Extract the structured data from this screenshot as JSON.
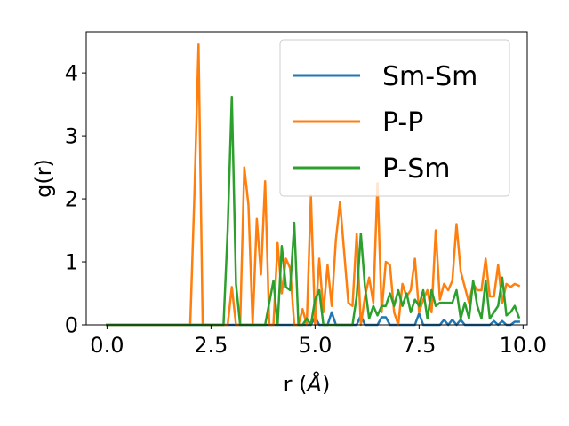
{
  "chart_data": {
    "type": "line",
    "xlabel": "r (",
    "xlabel_unit": "Å",
    "xlabel_close": ")",
    "ylabel": "g(r)",
    "xlim": [
      -0.5,
      10.1
    ],
    "ylim": [
      0,
      4.65
    ],
    "xticks": [
      0.0,
      2.5,
      5.0,
      7.5,
      10.0
    ],
    "xtick_labels": [
      "0.0",
      "2.5",
      "5.0",
      "7.5",
      "10.0"
    ],
    "yticks": [
      0,
      1,
      2,
      3,
      4
    ],
    "ytick_labels": [
      "0",
      "1",
      "2",
      "3",
      "4"
    ],
    "grid": false,
    "legend_position": "top-right",
    "series": [
      {
        "name": "Sm-Sm",
        "color": "#1f77b4",
        "x": [
          0.0,
          4.9,
          5.0,
          5.1,
          5.3,
          5.4,
          5.5,
          6.0,
          6.1,
          6.2,
          6.3,
          6.5,
          6.6,
          6.7,
          6.8,
          7.4,
          7.5,
          7.6,
          8.0,
          8.1,
          8.2,
          8.3,
          8.4,
          8.5,
          8.6,
          9.2,
          9.3,
          9.4,
          9.5,
          9.6,
          9.7,
          9.8,
          9.9
        ],
        "values": [
          0,
          0,
          0.12,
          0,
          0,
          0.2,
          0,
          0,
          0.15,
          0,
          0,
          0,
          0.12,
          0.12,
          0,
          0,
          0.18,
          0,
          0,
          0.08,
          0,
          0.08,
          0,
          0.08,
          0,
          0,
          0.06,
          0,
          0.06,
          0,
          0,
          0.05,
          0.05
        ]
      },
      {
        "name": "P-P",
        "color": "#ff7f0e",
        "x": [
          0.0,
          2.0,
          2.1,
          2.2,
          2.3,
          2.9,
          3.0,
          3.1,
          3.2,
          3.3,
          3.4,
          3.5,
          3.6,
          3.7,
          3.8,
          3.9,
          4.0,
          4.1,
          4.2,
          4.3,
          4.4,
          4.5,
          4.6,
          4.7,
          4.8,
          4.9,
          5.0,
          5.1,
          5.2,
          5.3,
          5.4,
          5.5,
          5.6,
          5.7,
          5.8,
          5.9,
          6.0,
          6.1,
          6.2,
          6.3,
          6.4,
          6.5,
          6.6,
          6.7,
          6.8,
          6.9,
          7.0,
          7.1,
          7.2,
          7.3,
          7.4,
          7.5,
          7.6,
          7.7,
          7.8,
          7.9,
          8.0,
          8.1,
          8.2,
          8.3,
          8.4,
          8.5,
          8.6,
          8.7,
          8.8,
          8.9,
          9.0,
          9.1,
          9.2,
          9.3,
          9.4,
          9.5,
          9.6,
          9.7,
          9.8,
          9.9
        ],
        "values": [
          0,
          0,
          2.05,
          4.45,
          0,
          0,
          0.6,
          0,
          0,
          2.5,
          1.9,
          0,
          1.68,
          0.8,
          2.28,
          0,
          0,
          1.3,
          0.5,
          1.05,
          0.9,
          0,
          0,
          0.25,
          0,
          2.05,
          0,
          1.05,
          0.2,
          0.95,
          0.3,
          1.35,
          1.95,
          1.15,
          0.35,
          0.3,
          1.45,
          0,
          0.45,
          0.75,
          0.35,
          2.25,
          0.2,
          1.0,
          0.95,
          0.2,
          0,
          0.65,
          0.45,
          0.55,
          1.05,
          0.2,
          0.4,
          0.55,
          0.2,
          1.5,
          0.4,
          0.65,
          0.55,
          0.7,
          1.6,
          0.85,
          0.6,
          0.35,
          0.65,
          0.55,
          0.55,
          1.05,
          0.45,
          0.45,
          0.95,
          0.35,
          0.65,
          0.6,
          0.65,
          0.62
        ]
      },
      {
        "name": "P-Sm",
        "color": "#2ca02c",
        "x": [
          0.0,
          2.8,
          2.9,
          3.0,
          3.1,
          3.2,
          3.8,
          3.9,
          4.0,
          4.1,
          4.2,
          4.3,
          4.4,
          4.5,
          4.6,
          4.7,
          4.8,
          4.9,
          5.0,
          5.1,
          5.2,
          5.3,
          5.9,
          6.0,
          6.1,
          6.2,
          6.3,
          6.4,
          6.5,
          6.6,
          6.7,
          6.8,
          6.9,
          7.0,
          7.1,
          7.2,
          7.3,
          7.4,
          7.5,
          7.6,
          7.7,
          7.8,
          7.9,
          8.0,
          8.1,
          8.2,
          8.3,
          8.4,
          8.5,
          8.6,
          8.7,
          8.8,
          8.9,
          9.0,
          9.1,
          9.2,
          9.3,
          9.4,
          9.5,
          9.6,
          9.7,
          9.8,
          9.9
        ],
        "values": [
          0,
          0,
          1.5,
          3.62,
          0.65,
          0,
          0,
          0.35,
          0.7,
          0,
          1.25,
          0.6,
          0.55,
          1.62,
          0,
          0,
          0.1,
          0,
          0.4,
          0.55,
          0,
          0,
          0,
          0.45,
          1.45,
          0.6,
          0.1,
          0.3,
          0.15,
          0.3,
          0.3,
          0.5,
          0.3,
          0.55,
          0.3,
          0.5,
          0.2,
          0.4,
          0.3,
          0.55,
          0.1,
          0.55,
          0.3,
          0.35,
          0.35,
          0.35,
          0.35,
          0.55,
          0.1,
          0.35,
          0.1,
          0.7,
          0.3,
          0.1,
          0.7,
          0.1,
          0.2,
          0.3,
          0.75,
          0.15,
          0.2,
          0.3,
          0.12
        ]
      }
    ]
  }
}
